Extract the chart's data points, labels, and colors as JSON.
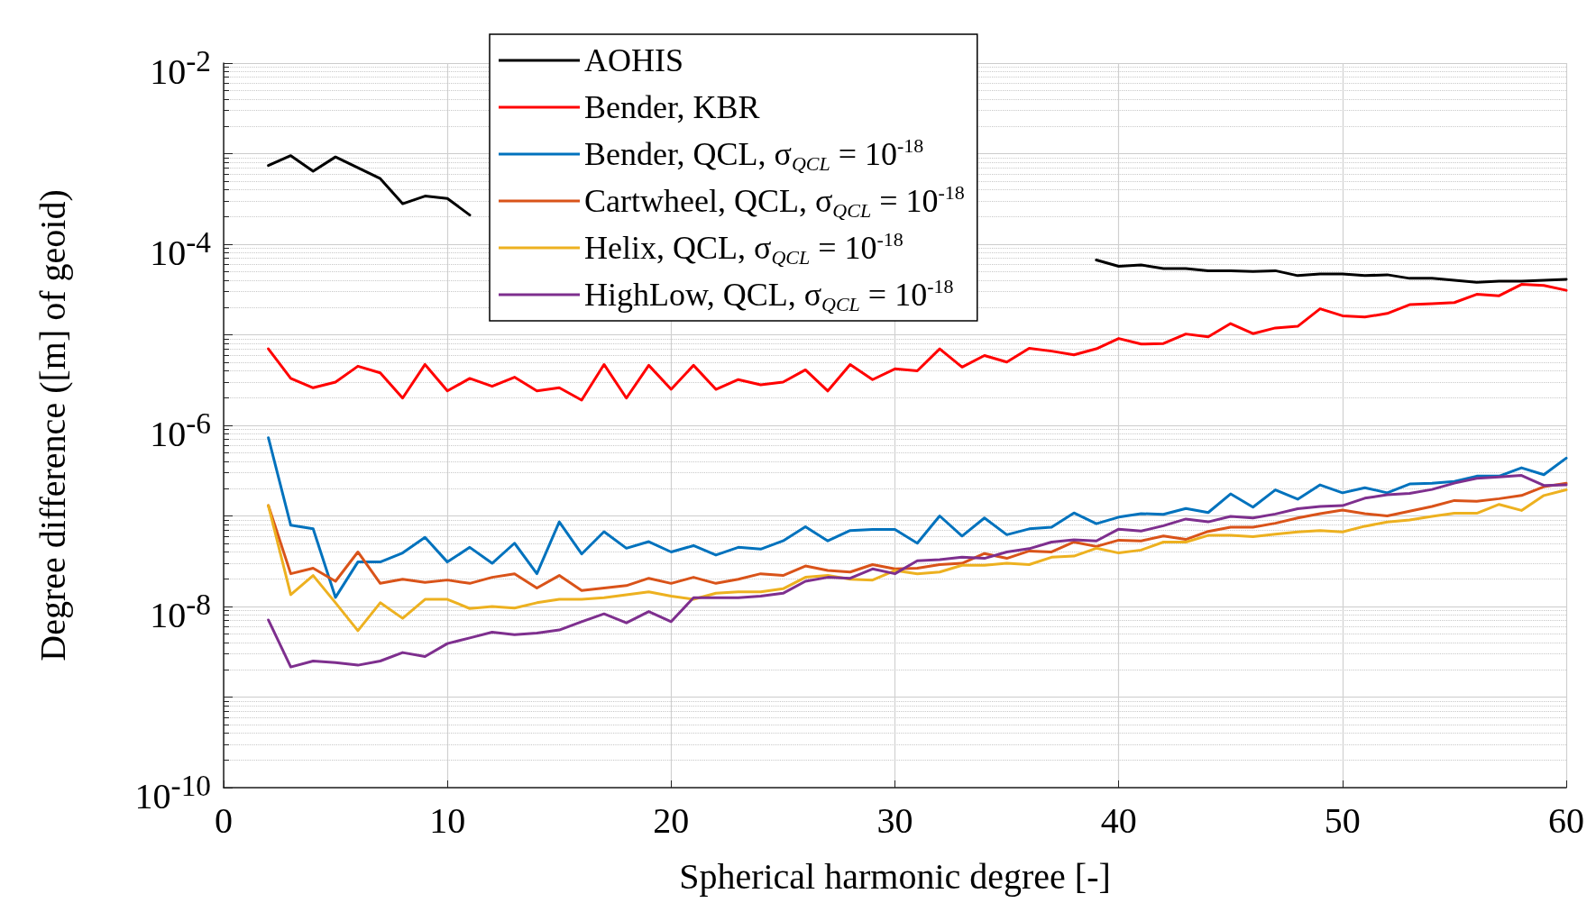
{
  "chart_data": {
    "type": "line",
    "xlabel": "Spherical harmonic degree [-]",
    "ylabel": "Degree difference ([m] of geoid)",
    "x": [
      2,
      3,
      4,
      5,
      6,
      7,
      8,
      9,
      10,
      11,
      12,
      13,
      14,
      15,
      16,
      17,
      18,
      19,
      20,
      21,
      22,
      23,
      24,
      25,
      26,
      27,
      28,
      29,
      30,
      31,
      32,
      33,
      34,
      35,
      36,
      37,
      38,
      39,
      40,
      41,
      42,
      43,
      44,
      45,
      46,
      47,
      48,
      49,
      50,
      51,
      52,
      53,
      54,
      55,
      56,
      57,
      58,
      59,
      60
    ],
    "xlim": [
      0,
      60
    ],
    "xticks": [
      0,
      10,
      20,
      30,
      40,
      50,
      60
    ],
    "ylim": [
      1e-10,
      0.01
    ],
    "yticks": [
      {
        "value": 1e-10,
        "label": "10$^{-10}$"
      },
      {
        "value": 1e-08,
        "label": "10$^{-8}$"
      },
      {
        "value": 1e-06,
        "label": "10$^{-6}$"
      },
      {
        "value": 0.0001,
        "label": "10$^{-4}$"
      },
      {
        "value": 0.01,
        "label": "10$^{-2}$"
      }
    ],
    "log": "y",
    "grid": true,
    "legend": "top left",
    "marker": "none",
    "line_style": "solid",
    "series": [
      {
        "name": "AOHIS",
        "color": "#000000",
        "values": [
          0.00074,
          0.00095,
          0.00064,
          0.00092,
          0.0007,
          0.00053,
          0.00028,
          0.00034,
          0.00032,
          0.00021,
          null,
          null,
          null,
          null,
          null,
          null,
          null,
          null,
          null,
          null,
          null,
          null,
          null,
          null,
          null,
          null,
          null,
          null,
          null,
          null,
          null,
          null,
          null,
          null,
          null,
          null,
          null,
          6.7e-05,
          5.7e-05,
          5.9e-05,
          5.4e-05,
          5.4e-05,
          5.1e-05,
          5.1e-05,
          5e-05,
          5.1e-05,
          4.5e-05,
          4.7e-05,
          4.7e-05,
          4.5e-05,
          4.6e-05,
          4.2e-05,
          4.2e-05,
          4e-05,
          3.8e-05,
          3.9e-05,
          3.9e-05,
          4e-05,
          4.1e-05
        ]
      },
      {
        "name": "Bender, KBR",
        "color": "#ff0000",
        "values": [
          7e-06,
          3.3e-06,
          2.6e-06,
          3e-06,
          4.5e-06,
          3.8e-06,
          2e-06,
          4.7e-06,
          2.4e-06,
          3.3e-06,
          2.7e-06,
          3.4e-06,
          2.4e-06,
          2.6e-06,
          1.9e-06,
          4.7e-06,
          2e-06,
          4.6e-06,
          2.5e-06,
          4.6e-06,
          2.5e-06,
          3.2e-06,
          2.8e-06,
          3e-06,
          4.1e-06,
          2.4e-06,
          4.7e-06,
          3.2e-06,
          4.2e-06,
          4e-06,
          7e-06,
          4.4e-06,
          5.9e-06,
          5e-06,
          7.1e-06,
          6.6e-06,
          6e-06,
          7e-06,
          9.1e-06,
          7.9e-06,
          8e-06,
          1.02e-05,
          9.5e-06,
          1.33e-05,
          1.03e-05,
          1.19e-05,
          1.24e-05,
          1.94e-05,
          1.62e-05,
          1.57e-05,
          1.72e-05,
          2.15e-05,
          2.2e-05,
          2.27e-05,
          2.8e-05,
          2.7e-05,
          3.6e-05,
          3.5e-05,
          3.1e-05
        ]
      },
      {
        "name": "Bender, QCL, σ$_{QCL}$ = 10$^{-18}$",
        "color": "#0072bd",
        "values": [
          7.3e-07,
          7.9e-08,
          7.2e-08,
          1.26e-08,
          3.1e-08,
          3.1e-08,
          3.9e-08,
          5.8e-08,
          3.1e-08,
          4.5e-08,
          3e-08,
          5e-08,
          2.3e-08,
          8.6e-08,
          3.8e-08,
          6.7e-08,
          4.4e-08,
          5.2e-08,
          4e-08,
          4.7e-08,
          3.7e-08,
          4.5e-08,
          4.3e-08,
          5.3e-08,
          7.6e-08,
          5.3e-08,
          6.9e-08,
          7.1e-08,
          7.1e-08,
          5e-08,
          1e-07,
          6e-08,
          9.5e-08,
          6.2e-08,
          7.2e-08,
          7.5e-08,
          1.08e-07,
          8.2e-08,
          9.7e-08,
          1.06e-07,
          1.04e-07,
          1.21e-07,
          1.09e-07,
          1.75e-07,
          1.25e-07,
          1.94e-07,
          1.53e-07,
          2.2e-07,
          1.8e-07,
          2.05e-07,
          1.8e-07,
          2.25e-07,
          2.3e-07,
          2.4e-07,
          2.75e-07,
          2.75e-07,
          3.4e-07,
          2.85e-07,
          4.35e-07
        ]
      },
      {
        "name": "Cartwheel, QCL, σ$_{QCL}$ = 10$^{-18}$",
        "color": "#d95319",
        "values": [
          1.3e-07,
          2.3e-08,
          2.65e-08,
          1.9e-08,
          4e-08,
          1.8e-08,
          2e-08,
          1.85e-08,
          1.96e-08,
          1.8e-08,
          2.1e-08,
          2.3e-08,
          1.6e-08,
          2.2e-08,
          1.5e-08,
          1.6e-08,
          1.7e-08,
          2.05e-08,
          1.8e-08,
          2.1e-08,
          1.8e-08,
          2e-08,
          2.3e-08,
          2.2e-08,
          2.8e-08,
          2.5e-08,
          2.4e-08,
          2.9e-08,
          2.6e-08,
          2.65e-08,
          2.9e-08,
          3e-08,
          3.85e-08,
          3.4e-08,
          4.1e-08,
          4e-08,
          5.15e-08,
          4.6e-08,
          5.4e-08,
          5.3e-08,
          6e-08,
          5.5e-08,
          6.75e-08,
          7.5e-08,
          7.5e-08,
          8.3e-08,
          9.5e-08,
          1.06e-07,
          1.16e-07,
          1.06e-07,
          1e-07,
          1.13e-07,
          1.27e-07,
          1.48e-07,
          1.45e-07,
          1.55e-07,
          1.68e-07,
          2.1e-07,
          2.3e-07
        ]
      },
      {
        "name": "Helix, QCL, σ$_{QCL}$ = 10$^{-18}$",
        "color": "#edb120",
        "values": [
          1.3e-07,
          1.35e-08,
          2.2e-08,
          1.1e-08,
          5.4e-09,
          1.1e-08,
          7.4e-09,
          1.2e-08,
          1.2e-08,
          9.5e-09,
          1e-08,
          9.6e-09,
          1.1e-08,
          1.2e-08,
          1.2e-08,
          1.25e-08,
          1.35e-08,
          1.45e-08,
          1.3e-08,
          1.2e-08,
          1.4e-08,
          1.45e-08,
          1.45e-08,
          1.57e-08,
          2.1e-08,
          2.2e-08,
          2e-08,
          1.96e-08,
          2.5e-08,
          2.3e-08,
          2.4e-08,
          2.85e-08,
          2.85e-08,
          3e-08,
          2.9e-08,
          3.5e-08,
          3.6e-08,
          4.4e-08,
          3.9e-08,
          4.2e-08,
          5.15e-08,
          5.15e-08,
          6.1e-08,
          6.1e-08,
          5.9e-08,
          6.3e-08,
          6.65e-08,
          6.9e-08,
          6.65e-08,
          7.7e-08,
          8.55e-08,
          9e-08,
          9.9e-08,
          1.07e-07,
          1.07e-07,
          1.34e-07,
          1.15e-07,
          1.68e-07,
          1.94e-07
        ]
      },
      {
        "name": "HighLow, QCL, σ$_{QCL}$ = 10$^{-18}$",
        "color": "#7e2f8e",
        "values": [
          7.1e-09,
          2.15e-09,
          2.5e-09,
          2.4e-09,
          2.25e-09,
          2.5e-09,
          3.1e-09,
          2.8e-09,
          3.9e-09,
          4.5e-09,
          5.2e-09,
          4.9e-09,
          5.1e-09,
          5.5e-09,
          6.8e-09,
          8.3e-09,
          6.6e-09,
          8.8e-09,
          6.8e-09,
          1.25e-08,
          1.25e-08,
          1.25e-08,
          1.3e-08,
          1.4e-08,
          1.9e-08,
          2.1e-08,
          2.05e-08,
          2.6e-08,
          2.3e-08,
          3.2e-08,
          3.3e-08,
          3.5e-08,
          3.4e-08,
          4e-08,
          4.35e-08,
          5.15e-08,
          5.45e-08,
          5.3e-08,
          7.15e-08,
          6.8e-08,
          7.8e-08,
          9.25e-08,
          8.6e-08,
          9.9e-08,
          9.5e-08,
          1.05e-07,
          1.2e-07,
          1.27e-07,
          1.3e-07,
          1.57e-07,
          1.71e-07,
          1.77e-07,
          1.96e-07,
          2.3e-07,
          2.6e-07,
          2.7e-07,
          2.8e-07,
          2.17e-07,
          2.2e-07
        ]
      }
    ]
  }
}
